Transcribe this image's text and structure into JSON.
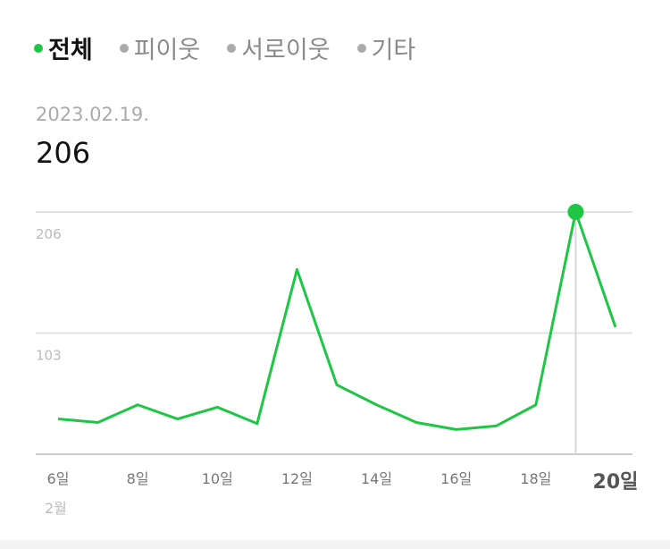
{
  "legend": [
    {
      "label": "전체",
      "active": true
    },
    {
      "label": "피이웃",
      "active": false
    },
    {
      "label": "서로이웃",
      "active": false
    },
    {
      "label": "기타",
      "active": false
    }
  ],
  "selected": {
    "date": "2023.02.19.",
    "value": "206"
  },
  "colors": {
    "line": "#1dc745",
    "grid": "#e2e2e2",
    "inactive": "#aaaaaa"
  },
  "chart_data": {
    "type": "line",
    "x": [
      6,
      7,
      8,
      9,
      10,
      11,
      12,
      13,
      14,
      15,
      16,
      17,
      18,
      19,
      20
    ],
    "series": [
      {
        "values": [
          30,
          27,
          42,
          30,
          40,
          26,
          157,
          59,
          42,
          27,
          21,
          24,
          42,
          206,
          108
        ]
      }
    ],
    "xtick_labels": [
      "6일",
      "8일",
      "10일",
      "12일",
      "14일",
      "16일",
      "18일",
      "20일"
    ],
    "xtick_values": [
      6,
      8,
      10,
      12,
      14,
      16,
      18,
      20
    ],
    "month_label": "2월",
    "yticks": [
      "206",
      "103"
    ],
    "ylim": [
      0,
      206
    ],
    "highlight_x": 19,
    "grid": true
  }
}
